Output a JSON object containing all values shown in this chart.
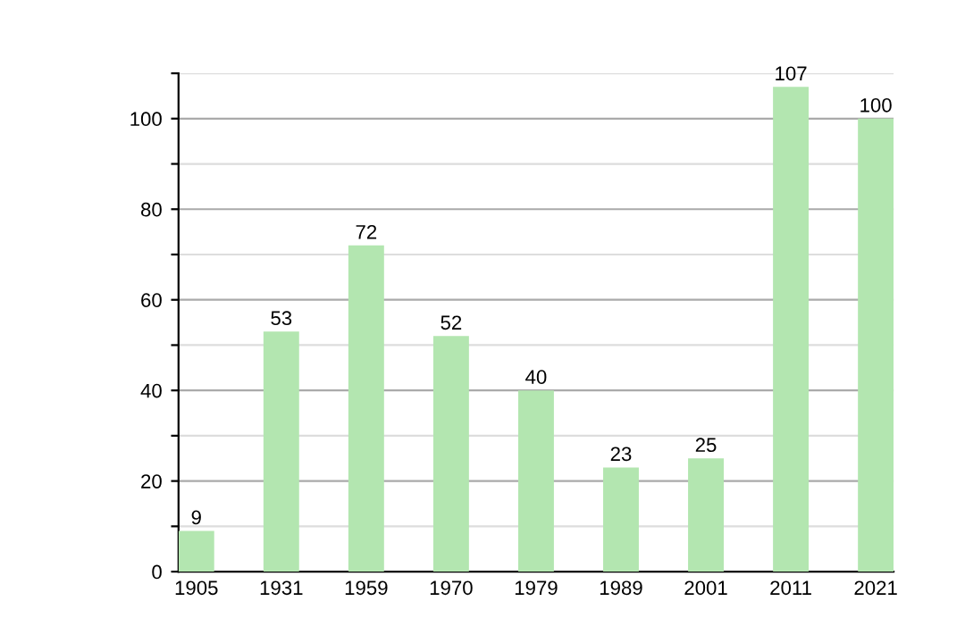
{
  "chart_data": {
    "type": "bar",
    "categories": [
      "1905",
      "1931",
      "1959",
      "1970",
      "1979",
      "1989",
      "2001",
      "2011",
      "2021"
    ],
    "values": [
      9,
      53,
      72,
      52,
      40,
      23,
      25,
      107,
      100
    ],
    "color": "#b3e6b0",
    "ylim": [
      0,
      110
    ],
    "yticks": [
      0,
      {
        "value": 10,
        "label": null
      },
      20,
      {
        "value": 30,
        "label": null
      },
      40,
      {
        "value": 50,
        "label": null
      },
      60,
      {
        "value": 70,
        "label": null
      },
      80,
      {
        "value": 90,
        "label": null
      },
      100,
      {
        "value": 110,
        "label": null
      }
    ],
    "grid": "y",
    "data_labels": true
  }
}
